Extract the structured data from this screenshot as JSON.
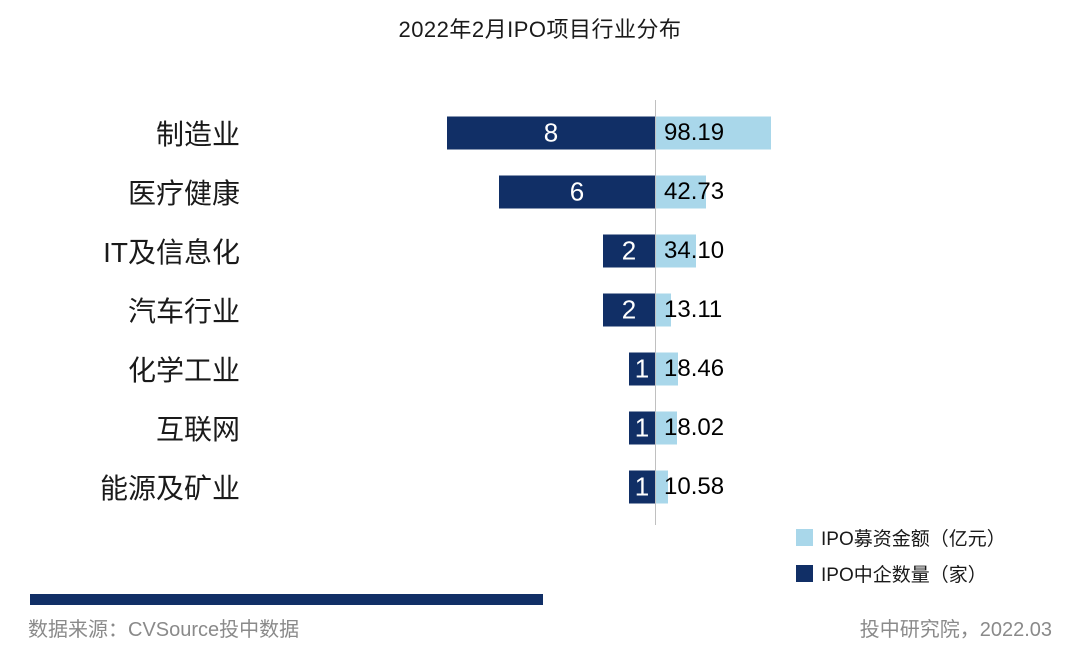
{
  "title": "2022年2月IPO项目行业分布",
  "chart_data": {
    "type": "bar",
    "orientation": "horizontal-diverging",
    "title": "2022年2月IPO项目行业分布",
    "categories": [
      "制造业",
      "医疗健康",
      "IT及信息化",
      "汽车行业",
      "化学工业",
      "互联网",
      "能源及矿业"
    ],
    "series": [
      {
        "name": "IPO中企数量（家）",
        "side": "left",
        "color": "#112f66",
        "values": [
          8,
          6,
          2,
          2,
          1,
          1,
          1
        ],
        "display": [
          "8",
          "6",
          "2",
          "2",
          "1",
          "1",
          "1"
        ]
      },
      {
        "name": "IPO募资金额（亿元）",
        "side": "right",
        "color": "#a9d7ea",
        "values": [
          98.19,
          42.73,
          34.1,
          13.11,
          18.46,
          18.02,
          10.58
        ],
        "display": [
          "98.19",
          "42.73",
          "34.10",
          "13.11",
          "18.46",
          "18.02",
          "10.58"
        ]
      }
    ],
    "value_labels": true,
    "grid": false,
    "legend_position": "bottom-right",
    "xlim_left_counts": [
      0,
      8
    ],
    "xlim_right_amount": [
      0,
      100
    ]
  },
  "legend": {
    "items": [
      {
        "label": "IPO募资金额（亿元）",
        "color": "#a9d7ea"
      },
      {
        "label": "IPO中企数量（家）",
        "color": "#112f66"
      }
    ]
  },
  "footer": {
    "source": "数据来源：CVSource投中数据",
    "credit": "投中研究院，2022.03"
  },
  "colors": {
    "dark_navy": "#112f66",
    "light_blue": "#a9d7ea",
    "axis_gray": "#c0c0c0",
    "footer_text": "#8a8a8a",
    "background": "#ffffff"
  }
}
